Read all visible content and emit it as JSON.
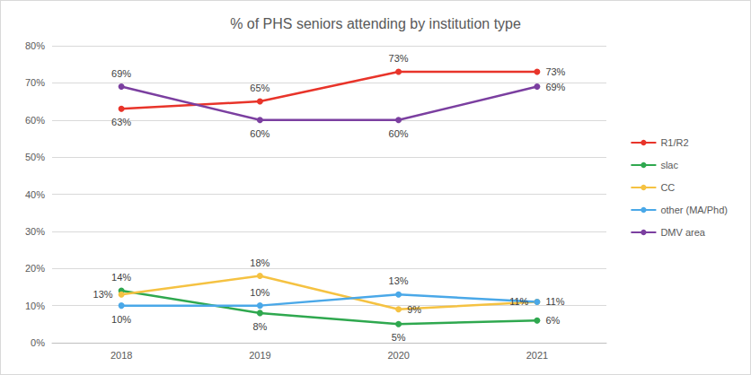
{
  "chart_data": {
    "type": "line",
    "title": "% of PHS seniors attending by institution type",
    "categories": [
      "2018",
      "2019",
      "2020",
      "2021"
    ],
    "ylim": [
      0,
      80
    ],
    "yticks": [
      {
        "value": 0,
        "label": "0%"
      },
      {
        "value": 10,
        "label": "10%"
      },
      {
        "value": 20,
        "label": "20%"
      },
      {
        "value": 30,
        "label": "30%"
      },
      {
        "value": 40,
        "label": "40%"
      },
      {
        "value": 50,
        "label": "50%"
      },
      {
        "value": 60,
        "label": "60%"
      },
      {
        "value": 70,
        "label": "70%"
      },
      {
        "value": 80,
        "label": "80%"
      }
    ],
    "grid": true,
    "legend": "right",
    "data_labels": true,
    "marker": "circle",
    "series": [
      {
        "name": "R1/R2",
        "color": "#e8342a",
        "values": [
          63,
          65,
          73,
          73
        ],
        "value_labels": [
          "63%",
          "65%",
          "73%",
          "73%"
        ]
      },
      {
        "name": "slac",
        "color": "#2fa84f",
        "values": [
          14,
          8,
          5,
          6
        ],
        "value_labels": [
          "14%",
          "8%",
          "5%",
          "6%"
        ]
      },
      {
        "name": "CC",
        "color": "#f5c242",
        "values": [
          13,
          18,
          9,
          11
        ],
        "value_labels": [
          "13%",
          "18%",
          "9%",
          "11%"
        ]
      },
      {
        "name": "other (MA/Phd)",
        "color": "#4aa8e8",
        "values": [
          10,
          10,
          13,
          11
        ],
        "value_labels": [
          "10%",
          "10%",
          "13%",
          "11%"
        ]
      },
      {
        "name": "DMV area",
        "color": "#7b3fa0",
        "values": [
          69,
          60,
          60,
          69
        ],
        "value_labels": [
          "69%",
          "60%",
          "60%",
          "69%"
        ]
      }
    ]
  }
}
